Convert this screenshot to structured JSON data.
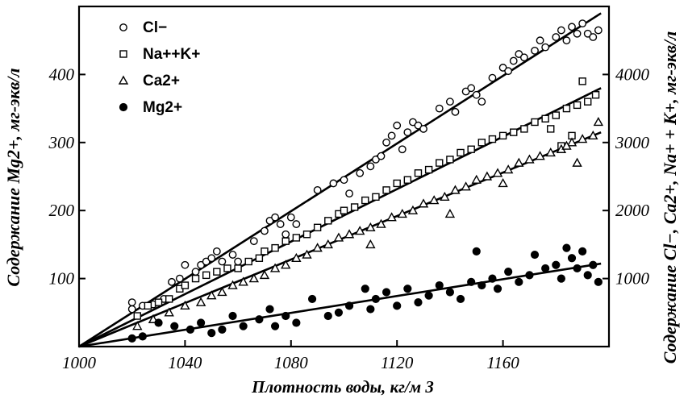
{
  "chart_data": {
    "type": "scatter",
    "xlabel": "Плотность воды, кг/м 3",
    "ylabel_left": "Содержание Mg2+, мг-экв/л",
    "ylabel_right": "Содержание Cl−, Ca2+, Na+ + K+, мг-экв/л",
    "xlim": [
      1000,
      1200
    ],
    "ylim_left": [
      0,
      500
    ],
    "ylim_right": [
      0,
      5000
    ],
    "xticks": [
      "1000",
      "1040",
      "1080",
      "1120",
      "1160"
    ],
    "yticks_left": [
      "100",
      "200",
      "300",
      "400"
    ],
    "yticks_right": [
      "1000",
      "2000",
      "3000",
      "4000"
    ],
    "grid": false,
    "legend_position": "top-left",
    "series": [
      {
        "name": "Cl−",
        "marker": "open-circle",
        "axis": "right",
        "fit_line": [
          [
            1000,
            0
          ],
          [
            1197,
            4900
          ]
        ],
        "points": [
          [
            1020,
            550
          ],
          [
            1020,
            650
          ],
          [
            1024,
            600
          ],
          [
            1028,
            620
          ],
          [
            1032,
            700
          ],
          [
            1035,
            950
          ],
          [
            1038,
            1000
          ],
          [
            1040,
            1200
          ],
          [
            1044,
            1100
          ],
          [
            1046,
            1200
          ],
          [
            1048,
            1250
          ],
          [
            1050,
            1300
          ],
          [
            1052,
            1400
          ],
          [
            1054,
            1250
          ],
          [
            1058,
            1350
          ],
          [
            1060,
            1250
          ],
          [
            1066,
            1550
          ],
          [
            1070,
            1700
          ],
          [
            1072,
            1850
          ],
          [
            1074,
            1900
          ],
          [
            1076,
            1800
          ],
          [
            1078,
            1650
          ],
          [
            1080,
            1900
          ],
          [
            1082,
            1800
          ],
          [
            1090,
            2300
          ],
          [
            1096,
            2400
          ],
          [
            1100,
            2450
          ],
          [
            1102,
            2250
          ],
          [
            1106,
            2550
          ],
          [
            1110,
            2650
          ],
          [
            1112,
            2750
          ],
          [
            1114,
            2800
          ],
          [
            1116,
            3000
          ],
          [
            1118,
            3100
          ],
          [
            1120,
            3250
          ],
          [
            1122,
            2900
          ],
          [
            1124,
            3150
          ],
          [
            1126,
            3300
          ],
          [
            1128,
            3250
          ],
          [
            1130,
            3200
          ],
          [
            1136,
            3500
          ],
          [
            1140,
            3600
          ],
          [
            1142,
            3450
          ],
          [
            1146,
            3750
          ],
          [
            1148,
            3800
          ],
          [
            1150,
            3700
          ],
          [
            1152,
            3600
          ],
          [
            1156,
            3950
          ],
          [
            1160,
            4100
          ],
          [
            1162,
            4050
          ],
          [
            1164,
            4200
          ],
          [
            1166,
            4300
          ],
          [
            1168,
            4250
          ],
          [
            1172,
            4350
          ],
          [
            1174,
            4500
          ],
          [
            1176,
            4400
          ],
          [
            1180,
            4550
          ],
          [
            1182,
            4650
          ],
          [
            1184,
            4500
          ],
          [
            1186,
            4700
          ],
          [
            1188,
            4600
          ],
          [
            1190,
            4750
          ],
          [
            1192,
            4600
          ],
          [
            1194,
            4550
          ],
          [
            1196,
            4650
          ]
        ]
      },
      {
        "name": "Na++K+",
        "marker": "open-square",
        "axis": "right",
        "fit_line": [
          [
            1000,
            0
          ],
          [
            1197,
            3800
          ]
        ],
        "points": [
          [
            1022,
            450
          ],
          [
            1026,
            600
          ],
          [
            1030,
            650
          ],
          [
            1034,
            700
          ],
          [
            1038,
            850
          ],
          [
            1040,
            900
          ],
          [
            1044,
            1000
          ],
          [
            1048,
            1050
          ],
          [
            1052,
            1100
          ],
          [
            1056,
            1150
          ],
          [
            1060,
            1150
          ],
          [
            1064,
            1250
          ],
          [
            1068,
            1300
          ],
          [
            1070,
            1400
          ],
          [
            1074,
            1450
          ],
          [
            1078,
            1550
          ],
          [
            1082,
            1600
          ],
          [
            1086,
            1650
          ],
          [
            1090,
            1750
          ],
          [
            1094,
            1850
          ],
          [
            1098,
            1950
          ],
          [
            1100,
            2000
          ],
          [
            1104,
            2050
          ],
          [
            1108,
            2150
          ],
          [
            1112,
            2200
          ],
          [
            1116,
            2300
          ],
          [
            1120,
            2400
          ],
          [
            1124,
            2450
          ],
          [
            1128,
            2550
          ],
          [
            1132,
            2600
          ],
          [
            1136,
            2700
          ],
          [
            1140,
            2750
          ],
          [
            1144,
            2850
          ],
          [
            1148,
            2900
          ],
          [
            1152,
            3000
          ],
          [
            1156,
            3050
          ],
          [
            1160,
            3100
          ],
          [
            1164,
            3150
          ],
          [
            1168,
            3200
          ],
          [
            1172,
            3300
          ],
          [
            1176,
            3350
          ],
          [
            1180,
            3400
          ],
          [
            1184,
            3500
          ],
          [
            1188,
            3550
          ],
          [
            1192,
            3600
          ],
          [
            1195,
            3700
          ],
          [
            1190,
            3900
          ],
          [
            1186,
            3100
          ],
          [
            1182,
            2950
          ],
          [
            1178,
            3200
          ]
        ]
      },
      {
        "name": "Ca2+",
        "marker": "open-triangle",
        "axis": "right",
        "fit_line": [
          [
            1000,
            0
          ],
          [
            1197,
            3150
          ]
        ],
        "points": [
          [
            1022,
            300
          ],
          [
            1028,
            400
          ],
          [
            1034,
            500
          ],
          [
            1040,
            600
          ],
          [
            1046,
            650
          ],
          [
            1050,
            750
          ],
          [
            1054,
            800
          ],
          [
            1058,
            900
          ],
          [
            1062,
            950
          ],
          [
            1066,
            1000
          ],
          [
            1070,
            1050
          ],
          [
            1074,
            1150
          ],
          [
            1078,
            1200
          ],
          [
            1082,
            1300
          ],
          [
            1086,
            1350
          ],
          [
            1090,
            1450
          ],
          [
            1094,
            1500
          ],
          [
            1098,
            1600
          ],
          [
            1102,
            1650
          ],
          [
            1106,
            1700
          ],
          [
            1110,
            1750
          ],
          [
            1114,
            1800
          ],
          [
            1118,
            1900
          ],
          [
            1122,
            1950
          ],
          [
            1126,
            2000
          ],
          [
            1130,
            2100
          ],
          [
            1134,
            2150
          ],
          [
            1138,
            2200
          ],
          [
            1142,
            2300
          ],
          [
            1146,
            2350
          ],
          [
            1150,
            2450
          ],
          [
            1154,
            2500
          ],
          [
            1158,
            2550
          ],
          [
            1162,
            2600
          ],
          [
            1166,
            2700
          ],
          [
            1170,
            2750
          ],
          [
            1174,
            2800
          ],
          [
            1178,
            2850
          ],
          [
            1182,
            2900
          ],
          [
            1186,
            3000
          ],
          [
            1190,
            3050
          ],
          [
            1194,
            3100
          ],
          [
            1196,
            3300
          ],
          [
            1188,
            2700
          ],
          [
            1184,
            2950
          ],
          [
            1160,
            2400
          ],
          [
            1140,
            1950
          ],
          [
            1110,
            1500
          ]
        ]
      },
      {
        "name": "Mg2+",
        "marker": "filled-circle",
        "axis": "left",
        "fit_line": [
          [
            1000,
            0
          ],
          [
            1197,
            122
          ]
        ],
        "points": [
          [
            1020,
            12
          ],
          [
            1024,
            15
          ],
          [
            1030,
            35
          ],
          [
            1036,
            30
          ],
          [
            1042,
            25
          ],
          [
            1046,
            35
          ],
          [
            1050,
            20
          ],
          [
            1054,
            25
          ],
          [
            1058,
            45
          ],
          [
            1062,
            30
          ],
          [
            1068,
            40
          ],
          [
            1072,
            55
          ],
          [
            1074,
            30
          ],
          [
            1078,
            45
          ],
          [
            1082,
            35
          ],
          [
            1088,
            70
          ],
          [
            1094,
            45
          ],
          [
            1098,
            50
          ],
          [
            1102,
            60
          ],
          [
            1108,
            85
          ],
          [
            1110,
            55
          ],
          [
            1112,
            70
          ],
          [
            1116,
            80
          ],
          [
            1120,
            60
          ],
          [
            1124,
            85
          ],
          [
            1128,
            65
          ],
          [
            1132,
            75
          ],
          [
            1136,
            90
          ],
          [
            1140,
            80
          ],
          [
            1144,
            70
          ],
          [
            1148,
            95
          ],
          [
            1150,
            140
          ],
          [
            1152,
            90
          ],
          [
            1156,
            100
          ],
          [
            1158,
            85
          ],
          [
            1162,
            110
          ],
          [
            1166,
            95
          ],
          [
            1170,
            105
          ],
          [
            1172,
            135
          ],
          [
            1176,
            115
          ],
          [
            1180,
            120
          ],
          [
            1182,
            100
          ],
          [
            1184,
            145
          ],
          [
            1186,
            130
          ],
          [
            1188,
            115
          ],
          [
            1190,
            140
          ],
          [
            1192,
            105
          ],
          [
            1194,
            120
          ],
          [
            1196,
            95
          ]
        ]
      }
    ]
  }
}
